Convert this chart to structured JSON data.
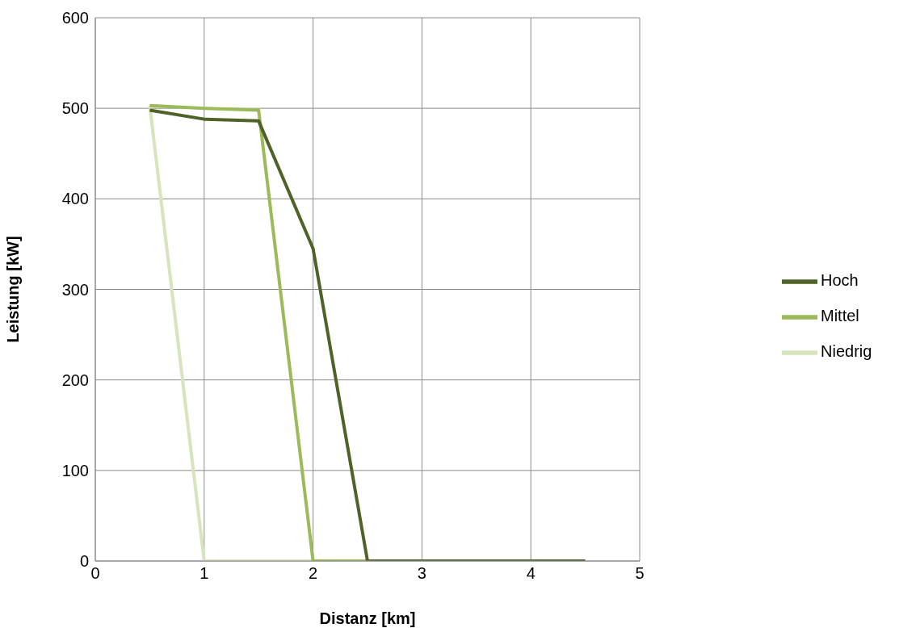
{
  "chart_data": {
    "type": "line",
    "xlabel": "Distanz [km]",
    "ylabel": "Leistung [kW]",
    "x": [
      0.5,
      1,
      1.5,
      2,
      2.5,
      3,
      3.5,
      4,
      4.5
    ],
    "series": [
      {
        "name": "Niedrig",
        "color": "#d7e4bd",
        "values": [
          503,
          0,
          0,
          0,
          null,
          null,
          null,
          null,
          null
        ]
      },
      {
        "name": "Mittel",
        "color": "#9bbb59",
        "values": [
          503,
          500,
          498,
          0,
          0,
          null,
          null,
          null,
          null
        ]
      },
      {
        "name": "Hoch",
        "color": "#4f6228",
        "values": [
          498,
          488,
          486,
          345,
          0,
          0,
          0,
          0,
          0
        ]
      }
    ],
    "xlim": [
      0,
      5
    ],
    "xticks": [
      0,
      1,
      2,
      3,
      4,
      5
    ],
    "ylim": [
      0,
      600
    ],
    "yticks": [
      0,
      100,
      200,
      300,
      400,
      500,
      600
    ],
    "grid": true,
    "legend": "right",
    "marker": "none",
    "line_style": "solid"
  }
}
